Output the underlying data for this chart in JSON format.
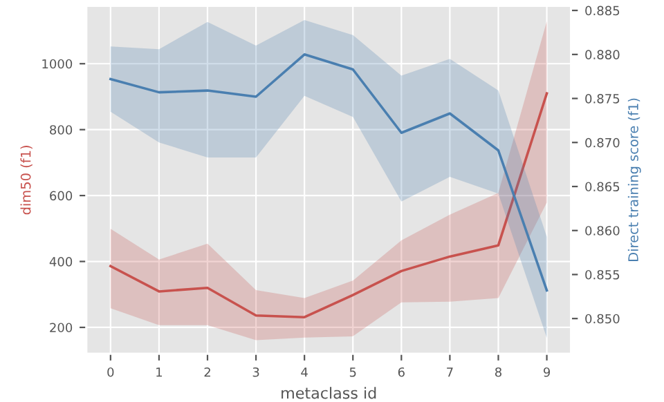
{
  "chart_data": {
    "type": "line",
    "xlabel": "metaclass id",
    "ylabel": "dim50 (f1)",
    "y2label": "Direct training score (f1)",
    "x": [
      0,
      1,
      2,
      3,
      4,
      5,
      6,
      7,
      8,
      9
    ],
    "xlim": [
      -0.5,
      9.5
    ],
    "xticks": [
      0,
      1,
      2,
      3,
      4,
      5,
      6,
      7,
      8,
      9
    ],
    "ylim": [
      120,
      1175
    ],
    "yticks": [
      200,
      400,
      600,
      800,
      1000
    ],
    "y2lim": [
      0.846,
      0.8855
    ],
    "y2ticks": [
      {
        "value": 0.85,
        "label": "0.850"
      },
      {
        "value": 0.855,
        "label": "0.855"
      },
      {
        "value": 0.86,
        "label": "0.860"
      },
      {
        "value": 0.865,
        "label": "0.865"
      },
      {
        "value": 0.87,
        "label": "0.870"
      },
      {
        "value": 0.875,
        "label": "0.875"
      },
      {
        "value": 0.88,
        "label": "0.880"
      },
      {
        "value": 0.885,
        "label": "0.885"
      }
    ],
    "grid": true,
    "series": [
      {
        "color": "#c8524e",
        "axis": "y",
        "values": [
          386,
          309,
          320,
          236,
          231,
          298,
          371,
          415,
          449,
          910
        ],
        "lower": [
          258,
          207,
          207,
          161,
          169,
          173,
          276,
          278,
          289,
          579
        ],
        "upper": [
          499,
          406,
          454,
          313,
          289,
          342,
          464,
          542,
          608,
          1129
        ]
      },
      {
        "color": "#4a7fb0",
        "axis": "y2",
        "values": [
          0.8772,
          0.8757,
          0.8759,
          0.8752,
          0.88,
          0.8783,
          0.8711,
          0.8733,
          0.8691,
          0.8532
        ],
        "lower": [
          0.8735,
          0.87,
          0.8683,
          0.8683,
          0.8753,
          0.8729,
          0.8633,
          0.8661,
          0.8642,
          0.8478
        ],
        "upper": [
          0.8809,
          0.8806,
          0.8837,
          0.881,
          0.8839,
          0.8822,
          0.8776,
          0.8795,
          0.8759,
          0.8593
        ]
      }
    ]
  }
}
